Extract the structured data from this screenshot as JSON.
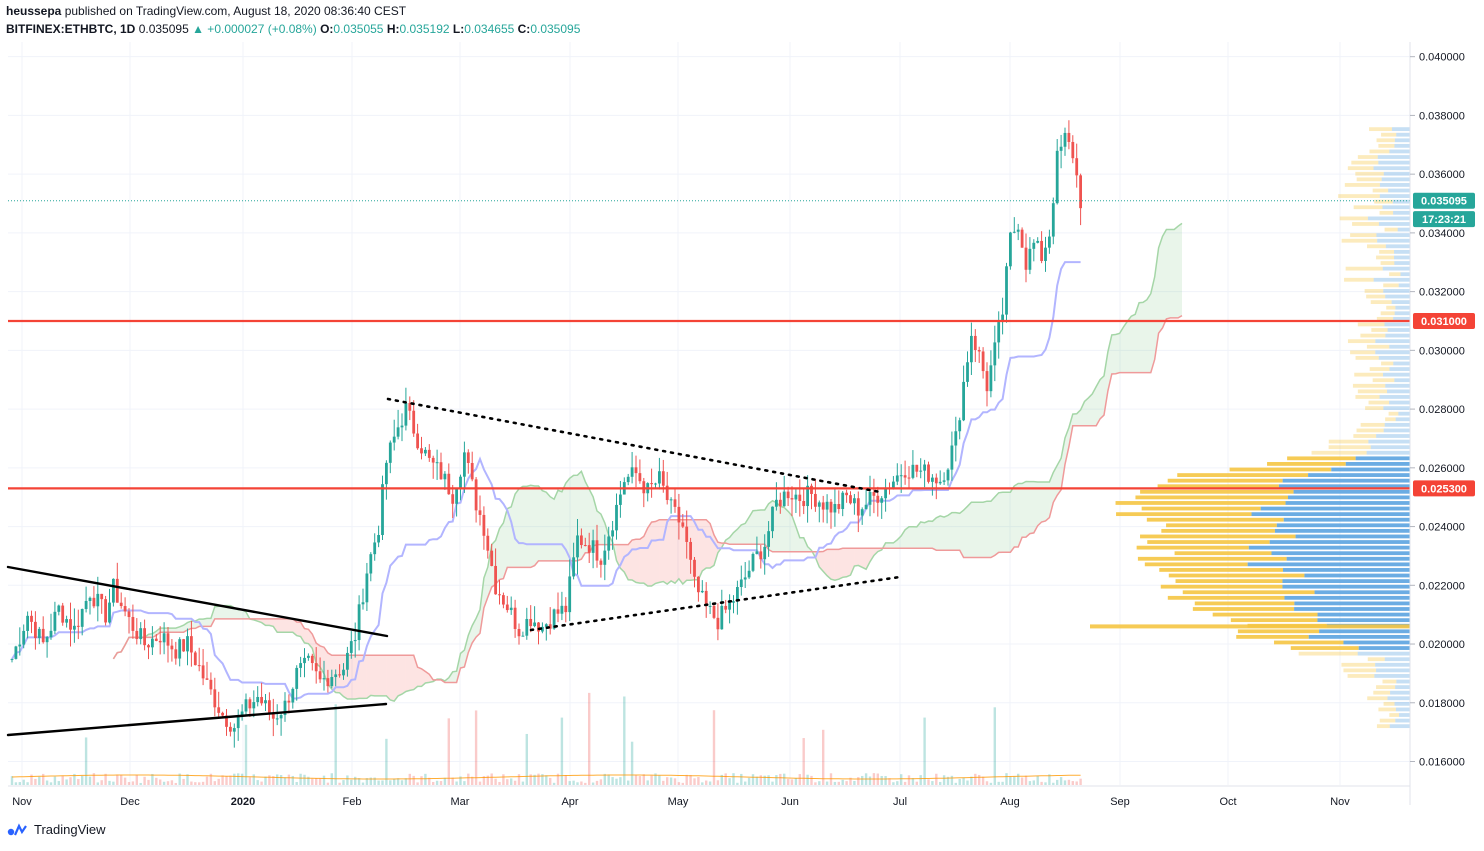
{
  "header": {
    "author": "heussepa",
    "published_text": "published on TradingView.com, August 18, 2020 08:36:40 CEST",
    "symbol": "BITFINEX:ETHBTC, 1D",
    "last": "0.035095",
    "change": "▲ +0.000027 (+0.08%)",
    "o_label": "O:",
    "o_value": "0.035055",
    "h_label": "H:",
    "h_value": "0.035192",
    "l_label": "L:",
    "l_value": "0.034655",
    "c_label": "C:",
    "c_value": "0.035095"
  },
  "footer": {
    "brand": "TradingView"
  },
  "colors": {
    "up": "#26a69a",
    "down": "#ef5350",
    "red_line": "#f44336",
    "kijun": "#b2b5ff",
    "span_a": "#a5d6a7",
    "span_b": "#ef9a9a",
    "vp_up": "#5ba3e0",
    "vp_down": "#f5c542"
  },
  "chart_data": {
    "type": "candlestick",
    "price_axis": {
      "ticks": [
        "0.040000",
        "0.038000",
        "0.036000",
        "0.034000",
        "0.032000",
        "0.030000",
        "0.028000",
        "0.026000",
        "0.024000",
        "0.022000",
        "0.020000",
        "0.018000",
        "0.016000"
      ],
      "ylim": [
        0.0152,
        0.0405
      ]
    },
    "time_axis": {
      "labels": [
        "Nov",
        "Dec",
        "2020",
        "Feb",
        "Mar",
        "Apr",
        "May",
        "Jun",
        "Jul",
        "Aug",
        "Sep",
        "Oct",
        "Nov"
      ]
    },
    "price_labels": [
      {
        "text": "0.035095",
        "value": 0.035095,
        "color": "#26a69a"
      },
      {
        "text": "17:23:21",
        "value": 0.03447,
        "color": "#26a69a"
      },
      {
        "text": "0.031000",
        "value": 0.031,
        "color": "#f44336"
      },
      {
        "text": "0.025300",
        "value": 0.0253,
        "color": "#f44336"
      }
    ],
    "horizontal_levels": [
      0.031,
      0.0253
    ],
    "last_price": 0.035095,
    "path": [
      [
        0,
        0.0195
      ],
      [
        4,
        0.021
      ],
      [
        8,
        0.02
      ],
      [
        12,
        0.0212
      ],
      [
        16,
        0.0205
      ],
      [
        20,
        0.0218
      ],
      [
        24,
        0.021
      ],
      [
        26,
        0.0219
      ],
      [
        30,
        0.0208
      ],
      [
        34,
        0.02
      ],
      [
        38,
        0.0203
      ],
      [
        42,
        0.0198
      ],
      [
        45,
        0.02
      ],
      [
        48,
        0.0192
      ],
      [
        50,
        0.0186
      ],
      [
        54,
        0.0176
      ],
      [
        57,
        0.0172
      ],
      [
        60,
        0.0178
      ],
      [
        63,
        0.0182
      ],
      [
        67,
        0.0175
      ],
      [
        70,
        0.0179
      ],
      [
        73,
        0.019
      ],
      [
        76,
        0.0193
      ],
      [
        79,
        0.0187
      ],
      [
        82,
        0.019
      ],
      [
        85,
        0.0192
      ],
      [
        88,
        0.0203
      ],
      [
        91,
        0.0225
      ],
      [
        94,
        0.024
      ],
      [
        96,
        0.0262
      ],
      [
        99,
        0.0274
      ],
      [
        101,
        0.028
      ],
      [
        104,
        0.027
      ],
      [
        107,
        0.0262
      ],
      [
        110,
        0.0258
      ],
      [
        113,
        0.0251
      ],
      [
        116,
        0.0265
      ],
      [
        119,
        0.0248
      ],
      [
        121,
        0.024
      ],
      [
        124,
        0.022
      ],
      [
        127,
        0.0213
      ],
      [
        130,
        0.0205
      ],
      [
        133,
        0.0209
      ],
      [
        136,
        0.0206
      ],
      [
        139,
        0.021
      ],
      [
        142,
        0.0212
      ],
      [
        145,
        0.0236
      ],
      [
        148,
        0.0234
      ],
      [
        151,
        0.023
      ],
      [
        154,
        0.0242
      ],
      [
        157,
        0.0256
      ],
      [
        160,
        0.0258
      ],
      [
        163,
        0.0252
      ],
      [
        166,
        0.0256
      ],
      [
        169,
        0.0246
      ],
      [
        172,
        0.024
      ],
      [
        175,
        0.022
      ],
      [
        178,
        0.0212
      ],
      [
        181,
        0.0208
      ],
      [
        184,
        0.0213
      ],
      [
        187,
        0.022
      ],
      [
        190,
        0.0228
      ],
      [
        193,
        0.0234
      ],
      [
        196,
        0.0248
      ],
      [
        199,
        0.0252
      ],
      [
        202,
        0.025
      ],
      [
        205,
        0.0251
      ],
      [
        208,
        0.0248
      ],
      [
        211,
        0.0246
      ],
      [
        214,
        0.025
      ],
      [
        217,
        0.0246
      ],
      [
        220,
        0.0249
      ],
      [
        223,
        0.0252
      ],
      [
        226,
        0.0256
      ],
      [
        229,
        0.026
      ],
      [
        232,
        0.0259
      ],
      [
        235,
        0.0258
      ],
      [
        238,
        0.0256
      ],
      [
        240,
        0.0262
      ],
      [
        242,
        0.027
      ],
      [
        244,
        0.0289
      ],
      [
        246,
        0.0306
      ],
      [
        248,
        0.0298
      ],
      [
        250,
        0.0288
      ],
      [
        252,
        0.03
      ],
      [
        254,
        0.0313
      ],
      [
        256,
        0.0338
      ],
      [
        258,
        0.0344
      ],
      [
        260,
        0.033
      ],
      [
        262,
        0.0336
      ],
      [
        264,
        0.0332
      ],
      [
        266,
        0.034
      ],
      [
        268,
        0.0365
      ],
      [
        270,
        0.0372
      ],
      [
        272,
        0.0367
      ],
      [
        274,
        0.0351
      ]
    ],
    "annotations": "trendlines, Ichimoku cloud, volume, volume profile"
  }
}
